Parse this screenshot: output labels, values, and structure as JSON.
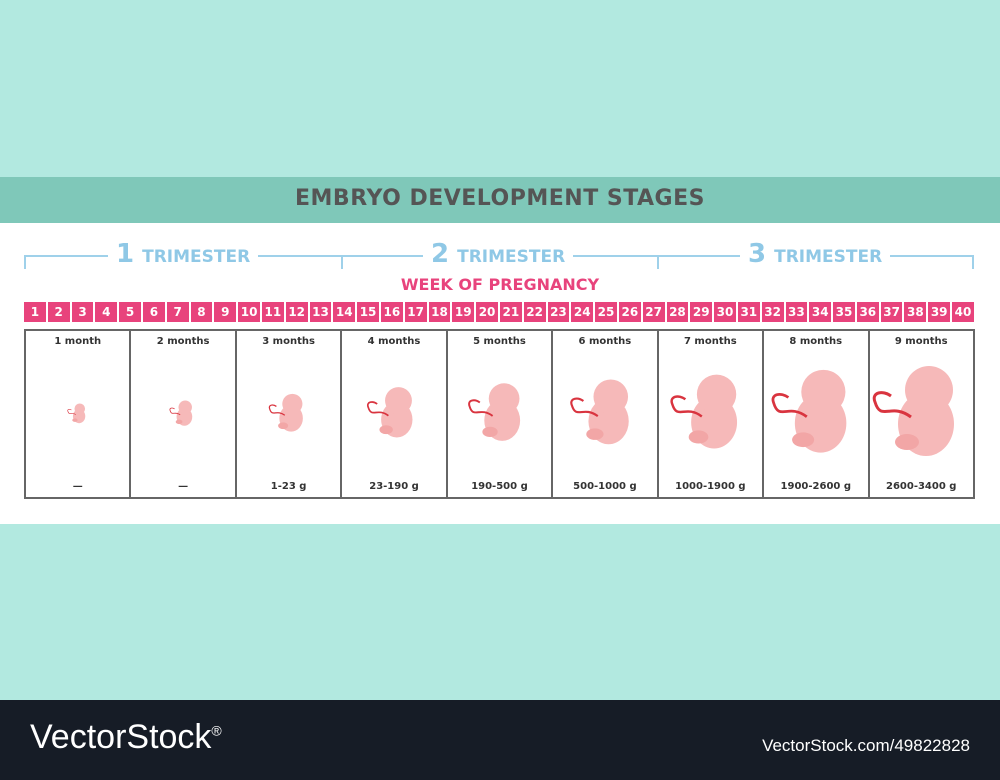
{
  "title": "EMBRYO DEVELOPMENT STAGES",
  "trimesters": [
    {
      "number": "1",
      "label": "TRIMESTER"
    },
    {
      "number": "2",
      "label": "TRIMESTER"
    },
    {
      "number": "3",
      "label": "TRIMESTER"
    }
  ],
  "week_title": "WEEK OF PREGNANCY",
  "weeks": [
    "1",
    "2",
    "3",
    "4",
    "5",
    "6",
    "7",
    "8",
    "9",
    "10",
    "11",
    "12",
    "13",
    "14",
    "15",
    "16",
    "17",
    "18",
    "19",
    "20",
    "21",
    "22",
    "23",
    "24",
    "25",
    "26",
    "27",
    "28",
    "29",
    "30",
    "31",
    "32",
    "33",
    "34",
    "35",
    "36",
    "37",
    "38",
    "39",
    "40"
  ],
  "months": [
    {
      "label": "1 month",
      "weight": "—"
    },
    {
      "label": "2 months",
      "weight": "—"
    },
    {
      "label": "3 months",
      "weight": "1-23 g"
    },
    {
      "label": "4 months",
      "weight": "23-190 g"
    },
    {
      "label": "5 months",
      "weight": "190-500 g"
    },
    {
      "label": "6 months",
      "weight": "500-1000 g"
    },
    {
      "label": "7 months",
      "weight": "1000-1900 g"
    },
    {
      "label": "8 months",
      "weight": "1900-2600 g"
    },
    {
      "label": "9 months",
      "weight": "2600-3400 g"
    }
  ],
  "colors": {
    "accent": "#e8437c",
    "trimester": "#8fc8e6",
    "band": "#7fc8b9",
    "background": "#b2e9e0",
    "embryo": "#f6b9b9",
    "cord": "#d9343f"
  },
  "footer": {
    "brand": "VectorStock",
    "registered": "®",
    "id": "VectorStock.com/49822828"
  }
}
